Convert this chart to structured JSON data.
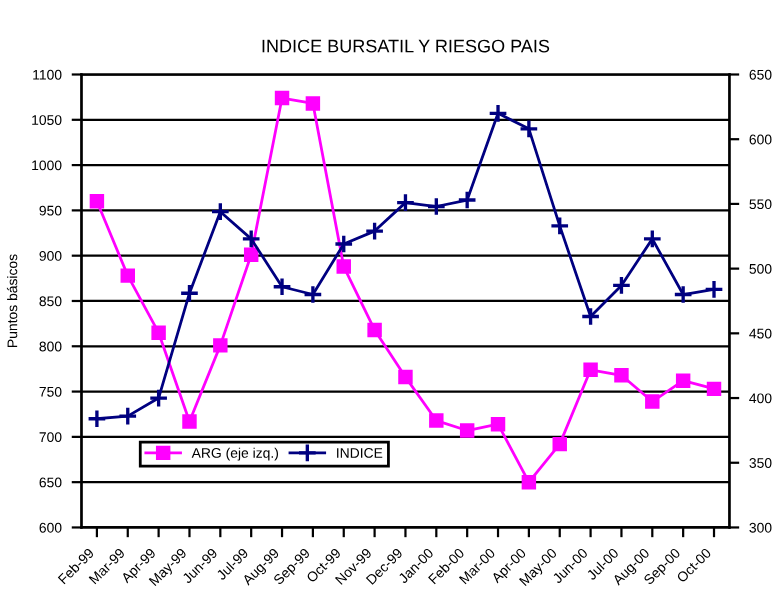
{
  "chart_data": {
    "type": "line",
    "title": "INDICE BURSATIL Y RIESGO PAIS",
    "ylabel": "Puntos básicos",
    "categories": [
      "Feb-99",
      "Mar-99",
      "Apr-99",
      "May-99",
      "Jun-99",
      "Jul-99",
      "Aug-99",
      "Sep-99",
      "Oct-99",
      "Nov-99",
      "Dec-99",
      "Jan-00",
      "Feb-00",
      "Mar-00",
      "Apr-00",
      "May-00",
      "Jun-00",
      "Jul-00",
      "Aug-00",
      "Sep-00",
      "Oct-00"
    ],
    "series": [
      {
        "name": "ARG (eje izq.)",
        "color": "#ff00ff",
        "marker": "square",
        "values": [
          960,
          878,
          815,
          717,
          801,
          901,
          1074,
          1068,
          888,
          818,
          766,
          718,
          707,
          714,
          650,
          692,
          774,
          768,
          739,
          762,
          753
        ]
      },
      {
        "name": "INDICE",
        "color": "#000080",
        "marker": "cross",
        "axis": "y2",
        "values": [
          384,
          386,
          400,
          481,
          544,
          523,
          486,
          480,
          519,
          529,
          551,
          548,
          553,
          620,
          608,
          533,
          463,
          487,
          523,
          480,
          484
        ]
      }
    ],
    "ylim": [
      600,
      1100
    ],
    "yticks": [
      600,
      650,
      700,
      750,
      800,
      850,
      900,
      950,
      1000,
      1050,
      1100
    ],
    "y2lim": [
      300,
      650
    ],
    "y2ticks": [
      300,
      350,
      400,
      450,
      500,
      550,
      600,
      650
    ],
    "grid": "y",
    "legend": "bottom",
    "line_style": "solid"
  }
}
